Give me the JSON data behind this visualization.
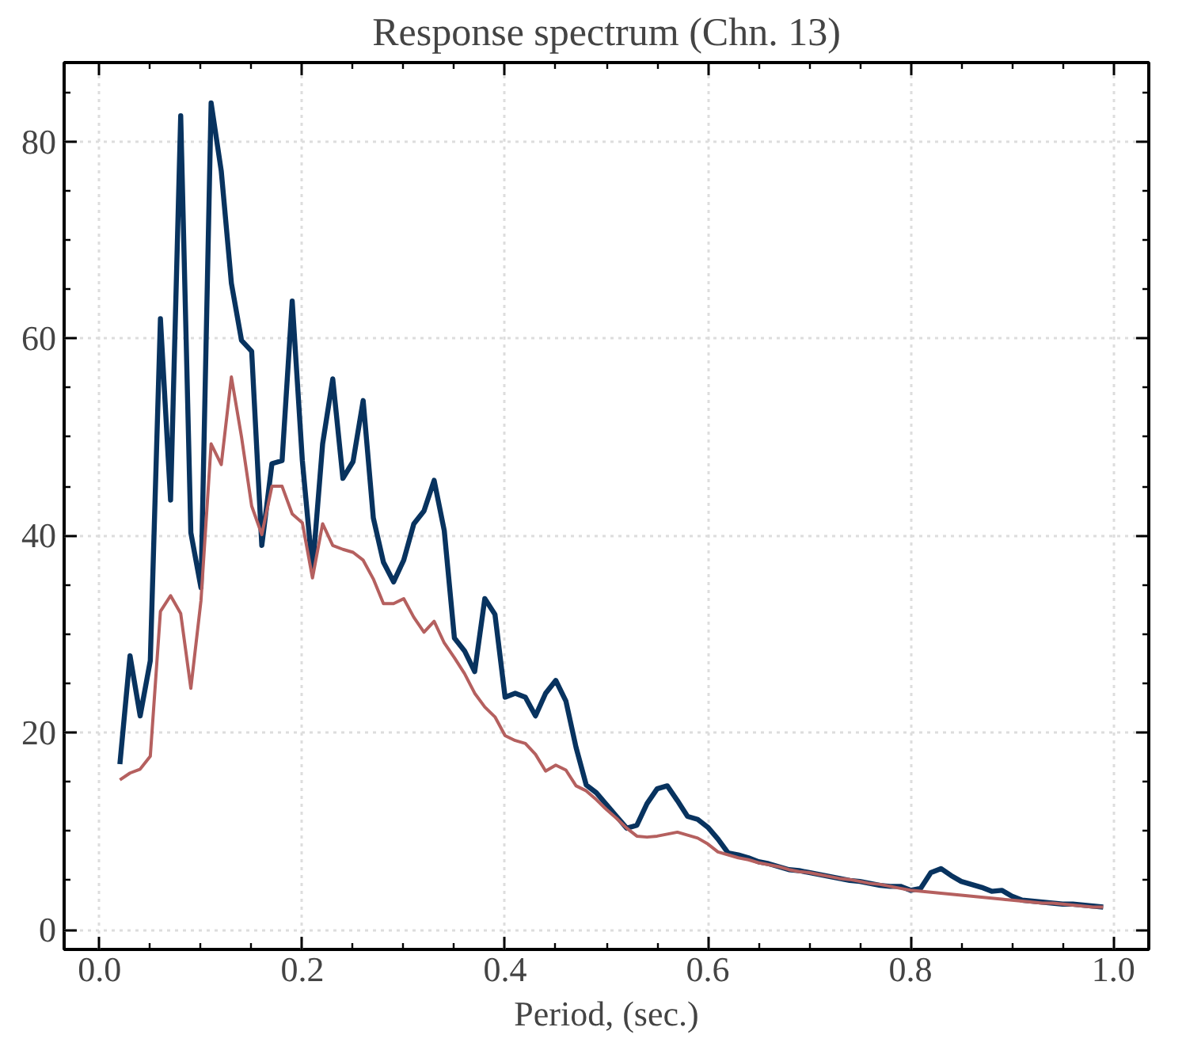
{
  "chart_data": {
    "type": "line",
    "title": "Response spectrum (Chn. 13)",
    "xlabel": "Period, (sec.)",
    "x": [
      0.02,
      0.03,
      0.04,
      0.05,
      0.06,
      0.07,
      0.08,
      0.09,
      0.1,
      0.11,
      0.12,
      0.13,
      0.14,
      0.15,
      0.16,
      0.17,
      0.18,
      0.19,
      0.2,
      0.21,
      0.22,
      0.23,
      0.24,
      0.25,
      0.26,
      0.27,
      0.28,
      0.29,
      0.3,
      0.31,
      0.32,
      0.33,
      0.34,
      0.35,
      0.36,
      0.37,
      0.38,
      0.39,
      0.4,
      0.41,
      0.42,
      0.43,
      0.44,
      0.45,
      0.46,
      0.47,
      0.48,
      0.49,
      0.5,
      0.51,
      0.52,
      0.53,
      0.54,
      0.55,
      0.56,
      0.57,
      0.58,
      0.59,
      0.6,
      0.61,
      0.62,
      0.63,
      0.64,
      0.65,
      0.66,
      0.67,
      0.68,
      0.69,
      0.7,
      0.71,
      0.72,
      0.73,
      0.74,
      0.75,
      0.76,
      0.77,
      0.78,
      0.79,
      0.8,
      0.81,
      0.82,
      0.83,
      0.84,
      0.85,
      0.86,
      0.87,
      0.88,
      0.89,
      0.9,
      0.91,
      0.92,
      0.93,
      0.94,
      0.95,
      0.96,
      0.97,
      0.98,
      0.99
    ],
    "series": [
      {
        "color": "#08335f",
        "values": [
          16.8,
          27.8,
          21.7,
          27.3,
          62,
          43.6,
          82.6,
          40.3,
          34.7,
          83.9,
          77,
          65.6,
          59.8,
          58.7,
          39,
          47.3,
          47.6,
          63.8,
          47.6,
          36.5,
          49.3,
          55.9,
          45.8,
          47.5,
          53.7,
          41.8,
          37.3,
          35.3,
          37.5,
          41.2,
          42.5,
          45.6,
          40.5,
          29.6,
          28.3,
          26.2,
          33.6,
          32,
          23.6,
          24,
          23.6,
          21.7,
          24,
          25.3,
          23.2,
          18.5,
          14.7,
          13.9,
          12.7,
          11.5,
          10.3,
          10.6,
          12.8,
          14.3,
          14.6,
          13.1,
          11.5,
          11.2,
          10.4,
          9.2,
          7.8,
          7.6,
          7.3,
          6.9,
          6.7,
          6.4,
          6.1,
          6.0,
          5.8,
          5.6,
          5.4,
          5.2,
          5.0,
          4.9,
          4.7,
          4.5,
          4.4,
          4.4,
          4.0,
          4.2,
          5.8,
          6.2,
          5.5,
          4.9,
          4.6,
          4.3,
          3.9,
          4.0,
          3.4,
          3.0,
          2.9,
          2.8,
          2.7,
          2.6,
          2.6,
          2.5,
          2.4,
          2.3
        ]
      },
      {
        "color": "#b5605f",
        "values": [
          15.2,
          15.9,
          16.3,
          17.6,
          32.3,
          33.9,
          32.1,
          24.5,
          33.4,
          49.3,
          47.2,
          56.1,
          50,
          43,
          40.1,
          45,
          45,
          42.2,
          41.3,
          35.7,
          41.2,
          39,
          38.6,
          38.3,
          37.5,
          35.6,
          33.1,
          33.1,
          33.6,
          31.7,
          30.2,
          31.3,
          29.1,
          27.6,
          26,
          24,
          22.6,
          21.6,
          19.7,
          19.2,
          18.9,
          17.8,
          16.1,
          16.7,
          16.2,
          14.6,
          14.1,
          13.2,
          12.2,
          11.3,
          10.3,
          9.5,
          9.4,
          9.5,
          9.7,
          9.9,
          9.6,
          9.3,
          8.7,
          7.9,
          7.6,
          7.3,
          7.1,
          6.8,
          6.6,
          6.4,
          6.1,
          5.9,
          5.8,
          5.6,
          5.4,
          5.2,
          5.1,
          4.9,
          4.7,
          4.6,
          4.4,
          4.2,
          4.0,
          3.9,
          3.8,
          3.7,
          3.6,
          3.5,
          3.4,
          3.3,
          3.2,
          3.1,
          3.0,
          2.9,
          2.8,
          2.7,
          2.7,
          2.6,
          2.5,
          2.4,
          2.3,
          2.3
        ]
      }
    ],
    "xlim": [
      -0.035,
      1.035
    ],
    "ylim": [
      -2,
      88
    ],
    "xticks": [
      {
        "value": 0.0,
        "label": "0.0"
      },
      {
        "value": 0.05,
        "label": null
      },
      {
        "value": 0.2,
        "label": "0.2"
      },
      {
        "value": 0.15,
        "label": null
      },
      {
        "value": 0.25,
        "label": null
      },
      {
        "value": 0.4,
        "label": "0.4"
      },
      {
        "value": 0.35,
        "label": null
      },
      {
        "value": 0.45,
        "label": null
      },
      {
        "value": 0.6,
        "label": "0.6"
      },
      {
        "value": 0.55,
        "label": null
      },
      {
        "value": 0.65,
        "label": null
      },
      {
        "value": 0.8,
        "label": "0.8"
      },
      {
        "value": 0.75,
        "label": null
      },
      {
        "value": 0.85,
        "label": null
      },
      {
        "value": 1.0,
        "label": "1.0"
      },
      {
        "value": 0.95,
        "label": null
      },
      {
        "value": 0.1,
        "label": null
      },
      {
        "value": 0.3,
        "label": null
      },
      {
        "value": 0.5,
        "label": null
      },
      {
        "value": 0.7,
        "label": null
      },
      {
        "value": 0.9,
        "label": null
      }
    ],
    "yticks": [
      0,
      20,
      40,
      60,
      80,
      {
        "value": 5,
        "label": null
      },
      {
        "value": 10,
        "label": null
      },
      {
        "value": 15,
        "label": null
      },
      {
        "value": 25,
        "label": null
      },
      {
        "value": 30,
        "label": null
      },
      {
        "value": 35,
        "label": null
      },
      {
        "value": 45,
        "label": null
      },
      {
        "value": 50,
        "label": null
      },
      {
        "value": 55,
        "label": null
      },
      {
        "value": 65,
        "label": null
      },
      {
        "value": 70,
        "label": null
      },
      {
        "value": 75,
        "label": null
      },
      {
        "value": 85,
        "label": null
      }
    ],
    "grid": true,
    "line_style": "solid",
    "marker": "none"
  }
}
